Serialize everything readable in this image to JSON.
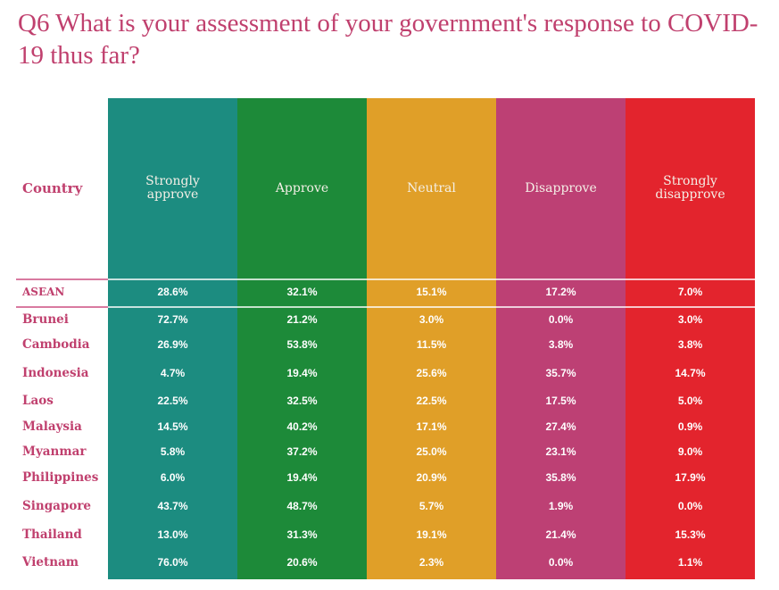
{
  "chart_data": {
    "type": "table",
    "title": "Q6 What is your assessment of your government's response to COVID-19 thus far?",
    "row_header": "Country",
    "columns": [
      {
        "label": "Strongly approve",
        "color": "#1c8c80"
      },
      {
        "label": "Approve",
        "color": "#1d8a39"
      },
      {
        "label": "Neutral",
        "color": "#e09f28"
      },
      {
        "label": "Disapprove",
        "color": "#bd4074"
      },
      {
        "label": "Strongly disapprove",
        "color": "#e3242d"
      }
    ],
    "rows": [
      {
        "country": "ASEAN",
        "values": [
          "28.6%",
          "32.1%",
          "15.1%",
          "17.2%",
          "7.0%"
        ]
      },
      {
        "country": "Brunei",
        "values": [
          "72.7%",
          "21.2%",
          "3.0%",
          "0.0%",
          "3.0%"
        ]
      },
      {
        "country": "Cambodia",
        "values": [
          "26.9%",
          "53.8%",
          "11.5%",
          "3.8%",
          "3.8%"
        ]
      },
      {
        "country": "Indonesia",
        "values": [
          "4.7%",
          "19.4%",
          "25.6%",
          "35.7%",
          "14.7%"
        ]
      },
      {
        "country": "Laos",
        "values": [
          "22.5%",
          "32.5%",
          "22.5%",
          "17.5%",
          "5.0%"
        ]
      },
      {
        "country": "Malaysia",
        "values": [
          "14.5%",
          "40.2%",
          "17.1%",
          "27.4%",
          "0.9%"
        ]
      },
      {
        "country": "Myanmar",
        "values": [
          "5.8%",
          "37.2%",
          "25.0%",
          "23.1%",
          "9.0%"
        ]
      },
      {
        "country": "Philippines",
        "values": [
          "6.0%",
          "19.4%",
          "20.9%",
          "35.8%",
          "17.9%"
        ]
      },
      {
        "country": "Singapore",
        "values": [
          "43.7%",
          "48.7%",
          "5.7%",
          "1.9%",
          "0.0%"
        ]
      },
      {
        "country": "Thailand",
        "values": [
          "13.0%",
          "31.3%",
          "19.1%",
          "21.4%",
          "15.3%"
        ]
      },
      {
        "country": "Vietnam",
        "values": [
          "76.0%",
          "20.6%",
          "2.3%",
          "0.0%",
          "1.1%"
        ]
      }
    ]
  },
  "colors": {
    "title": "#c0406e",
    "country_label": "#c0406e"
  }
}
